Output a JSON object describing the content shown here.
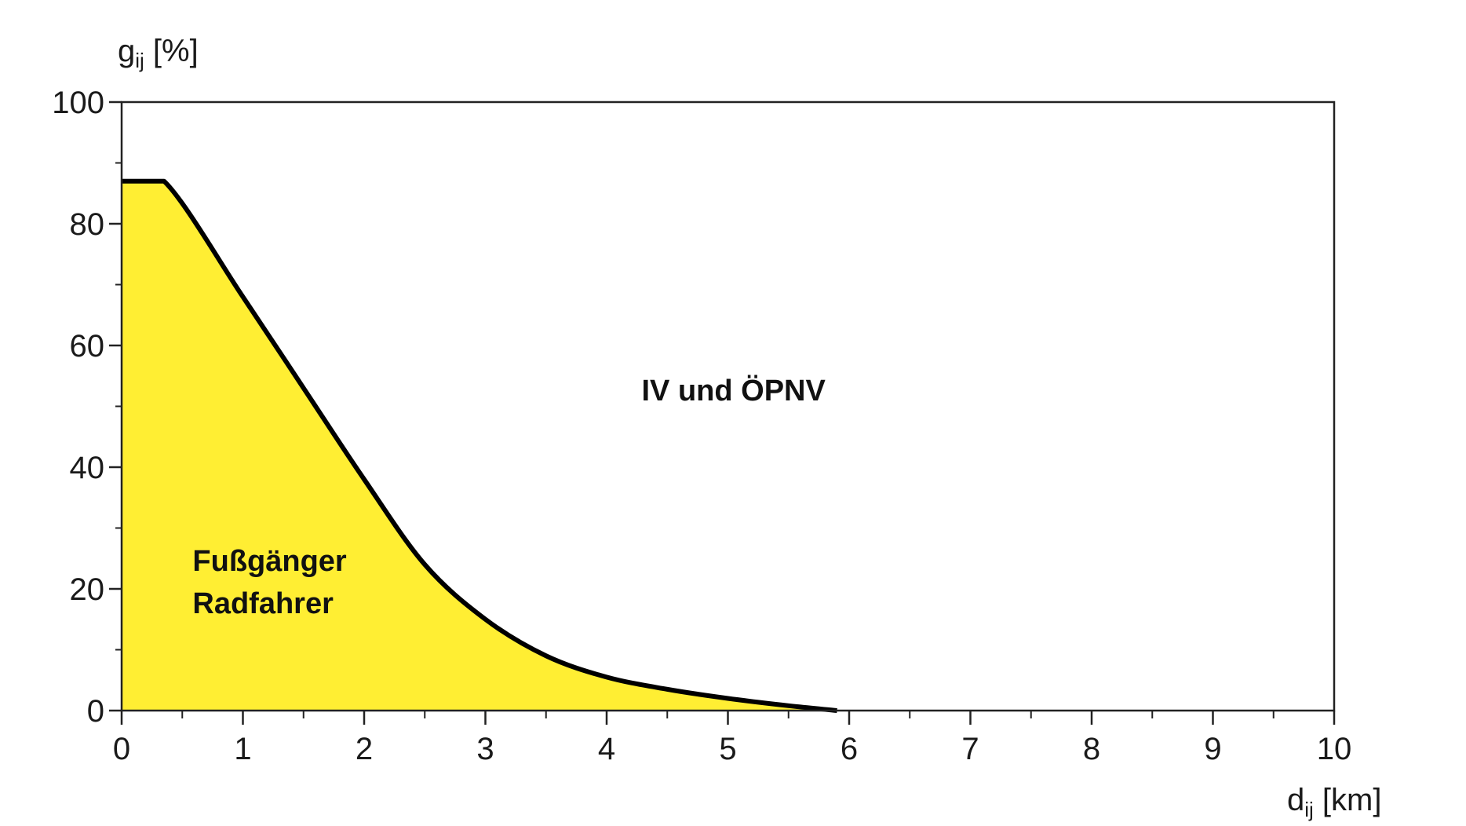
{
  "chart_data": {
    "type": "area",
    "title": "",
    "xlabel": {
      "main": "d",
      "sub": "ij",
      "unit": " [km]"
    },
    "ylabel": {
      "main": "g",
      "sub": "ij",
      "unit": " [%]"
    },
    "xlim": [
      0,
      10
    ],
    "ylim": [
      0,
      100
    ],
    "xticks": [
      0,
      1,
      2,
      3,
      4,
      5,
      6,
      7,
      8,
      9,
      10
    ],
    "yticks": [
      0,
      20,
      40,
      60,
      80,
      100
    ],
    "grid": false,
    "series": [
      {
        "name": "",
        "fill_color": "#FFEE33",
        "line_color": "#000000",
        "x": [
          0,
          0.35,
          1.0,
          1.5,
          2.0,
          2.5,
          3.0,
          3.5,
          4.0,
          4.5,
          5.0,
          5.5,
          5.9
        ],
        "y": [
          87,
          87,
          68,
          53,
          38,
          24,
          15,
          9,
          5.5,
          3.5,
          2,
          0.8,
          0
        ]
      }
    ],
    "annotations": [
      {
        "text": "IV und ÖPNV",
        "x": 5.0,
        "y": 51
      },
      {
        "text": "Fußgänger",
        "x": 1.2,
        "y": 23
      },
      {
        "text": "Radfahrer",
        "x": 1.2,
        "y": 16
      }
    ]
  }
}
